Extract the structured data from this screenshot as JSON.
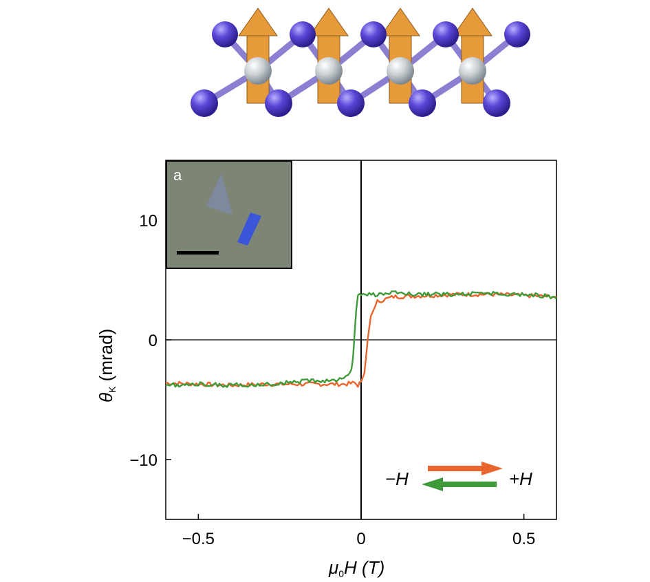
{
  "crystal": {
    "atom_color": "#5a46d6",
    "center_atom_color": "#c9cfd3",
    "spin_arrow_color": "#e79a3a"
  },
  "inset": {
    "label": "a",
    "background": "#7d8577",
    "flake_color": "#7f8aa6",
    "thick_flake_color": "#3b56d8"
  },
  "legend": {
    "minus_label": "−H",
    "plus_label": "+H"
  },
  "chart_data": {
    "type": "line",
    "xlabel_base": "μ",
    "xlabel_sub": "0",
    "xlabel_tail": "H (T)",
    "ylabel_base": "θ",
    "ylabel_sub": "K",
    "ylabel_tail": " (mrad)",
    "xlim": [
      -0.6,
      0.6
    ],
    "ylim": [
      -15,
      15
    ],
    "xticks": [
      -0.5,
      0,
      0.5
    ],
    "xtick_labels": [
      "−0.5",
      "0",
      "0.5"
    ],
    "yticks": [
      -10,
      0,
      10
    ],
    "ytick_labels": [
      "−10",
      "0",
      "10"
    ],
    "zero_lines": true,
    "series": [
      {
        "name": "+H",
        "color": "#e8652e",
        "x": [
          -0.6,
          -0.5,
          -0.4,
          -0.3,
          -0.2,
          -0.1,
          -0.05,
          -0.02,
          -0.01,
          0.0,
          0.01,
          0.015,
          0.02,
          0.03,
          0.05,
          0.1,
          0.2,
          0.3,
          0.4,
          0.5,
          0.6
        ],
        "y": [
          -3.6,
          -3.7,
          -3.8,
          -3.7,
          -3.7,
          -3.7,
          -3.7,
          -3.6,
          -3.8,
          -3.5,
          -2.8,
          -1.5,
          0.0,
          2.0,
          3.2,
          3.6,
          3.7,
          3.8,
          3.8,
          3.7,
          3.6
        ]
      },
      {
        "name": "−H",
        "color": "#3f9a3a",
        "x": [
          0.6,
          0.5,
          0.4,
          0.3,
          0.2,
          0.1,
          0.05,
          0.0,
          -0.01,
          -0.015,
          -0.02,
          -0.025,
          -0.03,
          -0.04,
          -0.06,
          -0.1,
          -0.2,
          -0.3,
          -0.4,
          -0.5,
          -0.6
        ],
        "y": [
          3.6,
          3.8,
          3.9,
          3.8,
          3.8,
          3.9,
          3.8,
          3.8,
          3.7,
          2.5,
          0.5,
          -1.5,
          -2.6,
          -3.0,
          -3.3,
          -3.4,
          -3.5,
          -3.7,
          -3.8,
          -3.7,
          -3.8
        ]
      }
    ]
  }
}
